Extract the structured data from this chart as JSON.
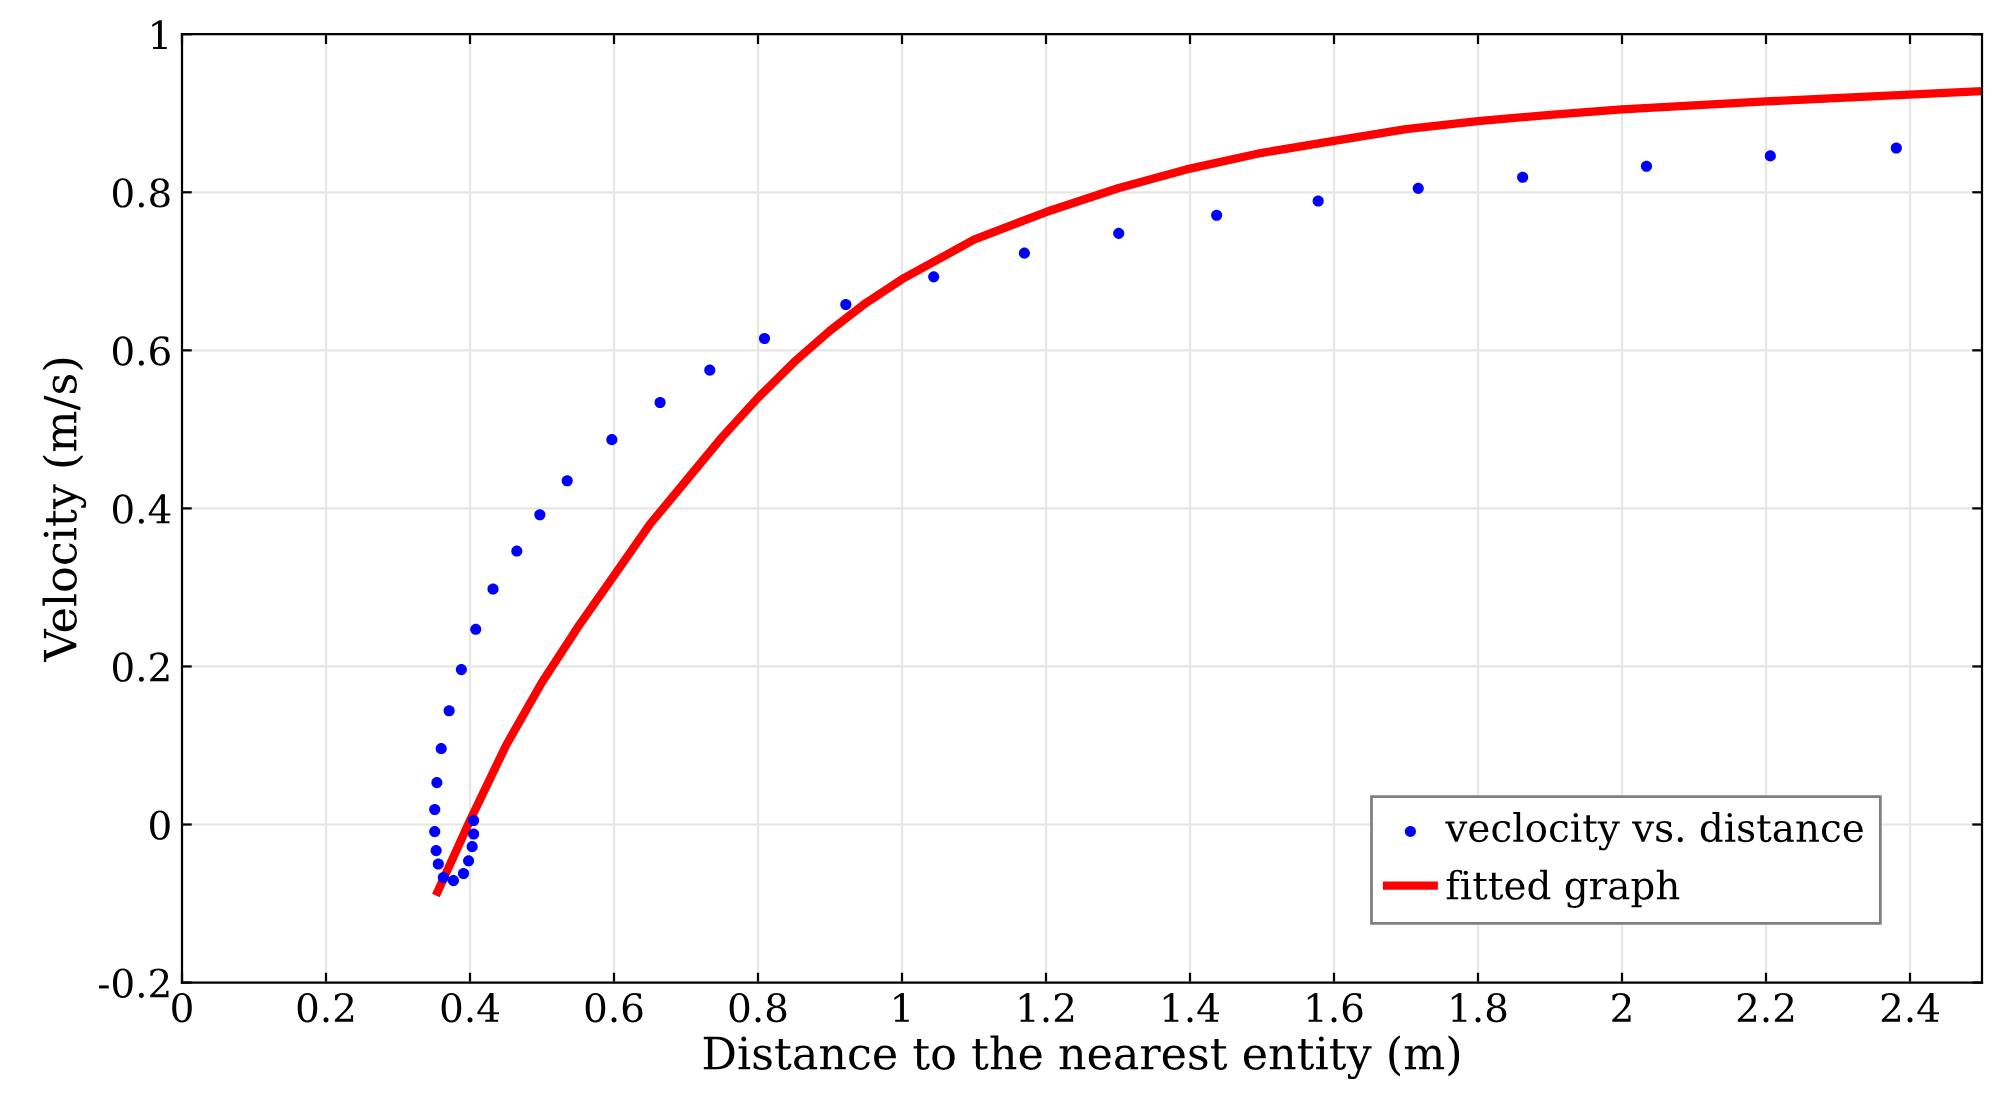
{
  "chart_data": {
    "type": "scatter",
    "xlabel": "Distance to the nearest entity (m)",
    "ylabel": "Velocity (m/s)",
    "series": [
      {
        "name": "veclocity vs. distance",
        "color": "#0000ff",
        "marker": "circle",
        "x": [
          0.405,
          0.405,
          0.403,
          0.398,
          0.391,
          0.377,
          0.363,
          0.356,
          0.353,
          0.351,
          0.351,
          0.354,
          0.36,
          0.371,
          0.388,
          0.408,
          0.432,
          0.465,
          0.497,
          0.535,
          0.597,
          0.664,
          0.733,
          0.809,
          0.922,
          1.044,
          1.17,
          1.301,
          1.437,
          1.578,
          1.717,
          1.862,
          2.034,
          2.206,
          2.381
        ],
        "values": [
          0.005,
          -0.012,
          -0.028,
          -0.046,
          -0.062,
          -0.071,
          -0.067,
          -0.05,
          -0.033,
          -0.009,
          0.019,
          0.053,
          0.096,
          0.144,
          0.196,
          0.247,
          0.298,
          0.346,
          0.392,
          0.435,
          0.487,
          0.534,
          0.575,
          0.615,
          0.658,
          0.693,
          0.723,
          0.748,
          0.771,
          0.789,
          0.805,
          0.819,
          0.833,
          0.846,
          0.856
        ]
      },
      {
        "name": "fitted graph",
        "type": "line",
        "color": "#ff0000",
        "marker": "none",
        "line_style": "solid",
        "x": [
          0.355,
          0.4,
          0.45,
          0.5,
          0.55,
          0.6,
          0.65,
          0.7,
          0.75,
          0.8,
          0.85,
          0.9,
          0.95,
          1.0,
          1.1,
          1.2,
          1.3,
          1.4,
          1.5,
          1.6,
          1.7,
          1.8,
          1.9,
          2.0,
          2.2,
          2.5
        ],
        "values": [
          -0.085,
          0.005,
          0.1,
          0.18,
          0.25,
          0.315,
          0.38,
          0.435,
          0.49,
          0.54,
          0.585,
          0.625,
          0.66,
          0.69,
          0.74,
          0.775,
          0.805,
          0.83,
          0.85,
          0.865,
          0.88,
          0.89,
          0.898,
          0.905,
          0.915,
          0.928
        ]
      }
    ],
    "xlim": [
      0,
      2.5
    ],
    "xticks": [
      0,
      0.2,
      0.4,
      0.6,
      0.8,
      1,
      1.2,
      1.4,
      1.6,
      1.8,
      2,
      2.2,
      2.4
    ],
    "ylim": [
      -0.2,
      1
    ],
    "yticks": [
      -0.2,
      0,
      0.2,
      0.4,
      0.6,
      0.8,
      1
    ],
    "grid": true,
    "legend": "lower right"
  }
}
